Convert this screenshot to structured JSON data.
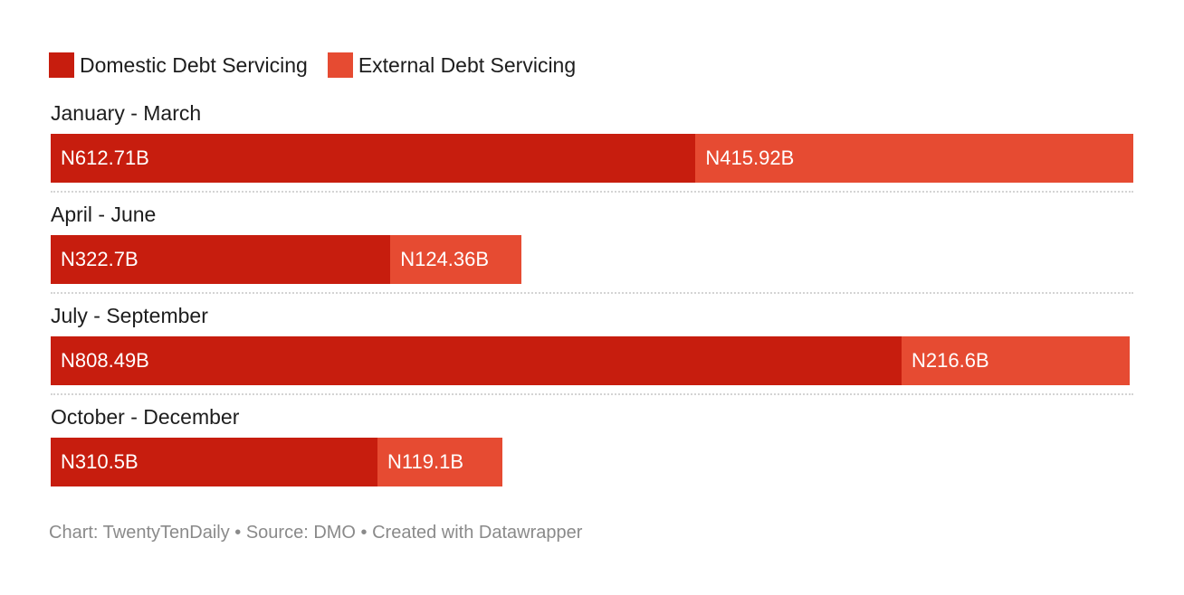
{
  "legend": [
    {
      "label": "Domestic Debt Servicing",
      "color": "#c71d0e"
    },
    {
      "label": "External Debt Servicing",
      "color": "#e64b32"
    }
  ],
  "chart_data": {
    "type": "bar",
    "orientation": "horizontal",
    "stacked": true,
    "categories": [
      "January - March",
      "April - June",
      "July - September",
      "October - December"
    ],
    "series": [
      {
        "name": "Domestic Debt Servicing",
        "values": [
          612.71,
          322.7,
          808.49,
          310.5
        ],
        "labels": [
          "N612.71B",
          "N322.7B",
          "N808.49B",
          "N310.5B"
        ],
        "color": "#c71d0e"
      },
      {
        "name": "External Debt Servicing",
        "values": [
          415.92,
          124.36,
          216.6,
          119.1
        ],
        "labels": [
          "N415.92B",
          "N124.36B",
          "N216.6B",
          "N119.1B"
        ],
        "color": "#e64b32"
      }
    ],
    "xlim": [
      0,
      1028.63
    ],
    "grid": false,
    "legend_position": "top-left"
  },
  "footer": {
    "text": "Chart: TwentyTenDaily • Source: DMO • Created with Datawrapper"
  }
}
